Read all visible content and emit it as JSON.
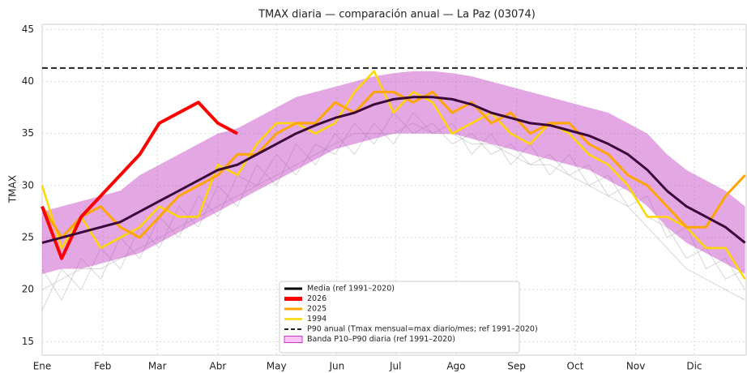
{
  "chart_data": {
    "type": "line",
    "title": "TMAX diaria — comparación anual — La Paz (03074)",
    "y_label": "TMAX",
    "x": [
      0,
      10,
      20,
      30,
      40,
      50,
      60,
      70,
      80,
      90,
      100,
      110,
      120,
      130,
      140,
      150,
      160,
      170,
      180,
      190,
      200,
      210,
      220,
      230,
      240,
      250,
      260,
      270,
      280,
      290,
      300,
      310,
      320,
      330,
      340,
      350,
      360
    ],
    "xlim": [
      0,
      361
    ],
    "ylim": [
      13.7,
      45.5
    ],
    "xticks": [
      {
        "value": 0,
        "label": "Ene"
      },
      {
        "value": 31,
        "label": "Feb"
      },
      {
        "value": 59,
        "label": "Mar"
      },
      {
        "value": 90,
        "label": "Abr"
      },
      {
        "value": 120,
        "label": "May"
      },
      {
        "value": 151,
        "label": "Jun"
      },
      {
        "value": 181,
        "label": "Jul"
      },
      {
        "value": 212,
        "label": "Ago"
      },
      {
        "value": 243,
        "label": "Sep"
      },
      {
        "value": 273,
        "label": "Oct"
      },
      {
        "value": 304,
        "label": "Nov"
      },
      {
        "value": 334,
        "label": "Dic"
      }
    ],
    "yticks": [
      15,
      20,
      25,
      30,
      35,
      40,
      45
    ],
    "grid": true,
    "legend": "lower center",
    "background_series": [
      {
        "color": "#bdbdbd",
        "values": [
          20,
          21,
          22,
          22,
          23,
          24,
          25,
          26,
          27,
          28,
          29,
          30,
          31,
          32,
          33,
          34,
          35,
          35,
          35,
          36,
          35,
          35,
          34,
          34,
          33,
          32,
          32,
          31,
          30,
          29,
          28,
          26,
          24,
          22,
          21,
          20,
          19
        ]
      },
      {
        "color": "#bdbdbd",
        "values": [
          22,
          19,
          23,
          21,
          25,
          23,
          27,
          25,
          29,
          27,
          31,
          30,
          33,
          31,
          34,
          33,
          36,
          34,
          37,
          35,
          36,
          34,
          35,
          33,
          34,
          32,
          33,
          31,
          32,
          29,
          30,
          27,
          26,
          23,
          24,
          21,
          22
        ]
      },
      {
        "color": "#bdbdbd",
        "values": [
          18,
          22,
          20,
          24,
          22,
          26,
          24,
          28,
          26,
          30,
          28,
          32,
          30,
          34,
          32,
          35,
          33,
          36,
          34,
          37,
          35,
          36,
          33,
          35,
          32,
          34,
          31,
          33,
          30,
          31,
          28,
          29,
          25,
          26,
          22,
          23,
          20
        ]
      }
    ],
    "band": {
      "name": "Banda P10–P90 diaria (ref 1991–2020)",
      "color": "#c03cc0",
      "lower": [
        21.5,
        22,
        22,
        22.5,
        23,
        23.5,
        24.5,
        25.5,
        26.5,
        27.5,
        28.5,
        29.5,
        30.5,
        31.5,
        32.5,
        33.5,
        34,
        34.5,
        35,
        35,
        35,
        35,
        34.5,
        34,
        33.5,
        33,
        32.5,
        32,
        31.5,
        30.5,
        29.5,
        28,
        26,
        24.5,
        23.5,
        22.5,
        21.5
      ],
      "upper": [
        27.5,
        28,
        28.5,
        29,
        29.5,
        31,
        32,
        33,
        34,
        35,
        35.5,
        36.5,
        37.5,
        38.5,
        39,
        39.5,
        40,
        40.5,
        40.8,
        41,
        41,
        40.8,
        40.5,
        40,
        39.5,
        39,
        38.5,
        38,
        37.5,
        37,
        36,
        35,
        33,
        31.5,
        30.5,
        29.5,
        28
      ]
    },
    "series": [
      {
        "name": "Media (ref 1991–2020)",
        "color": "#3a0838",
        "values": [
          24.5,
          25,
          25.5,
          26,
          26.5,
          27.5,
          28.5,
          29.5,
          30.5,
          31.5,
          32,
          33,
          34,
          35,
          35.8,
          36.5,
          37,
          37.8,
          38.3,
          38.5,
          38.5,
          38.3,
          37.8,
          37,
          36.5,
          36,
          35.8,
          35.3,
          34.8,
          34,
          33,
          31.5,
          29.5,
          28,
          27,
          26,
          24.5
        ]
      },
      {
        "name": "2026",
        "color": "#ff0000",
        "values": [
          28,
          23,
          27,
          29,
          31,
          33,
          36,
          37,
          38,
          36,
          35,
          null,
          null,
          null,
          null,
          null,
          null,
          null,
          null,
          null,
          null,
          null,
          null,
          null,
          null,
          null,
          null,
          null,
          null,
          null,
          null,
          null,
          null,
          null,
          null,
          null,
          null
        ]
      },
      {
        "name": "2025",
        "color": "#ffa500",
        "values": [
          28,
          25,
          27,
          28,
          26,
          25,
          27,
          29,
          30,
          31,
          33,
          33,
          35,
          36,
          36,
          38,
          37,
          39,
          39,
          38,
          39,
          37,
          38,
          36,
          37,
          35,
          36,
          36,
          34,
          33,
          31,
          30,
          28,
          26,
          26,
          29,
          31
        ]
      },
      {
        "name": "1994",
        "color": "#ffd700",
        "values": [
          30,
          24,
          27,
          24,
          25,
          26,
          28,
          27,
          27,
          32,
          31,
          34,
          36,
          36,
          35,
          36,
          39,
          41,
          37,
          39,
          38,
          35,
          36,
          37,
          35,
          34,
          36,
          35,
          33,
          32,
          30,
          27,
          27,
          26,
          24,
          24,
          21
        ]
      }
    ],
    "p90": {
      "name": "P90 anual (Tmax mensual=max diario/mes; ref 1991–2020)",
      "value": 41.3,
      "color": "#222222"
    }
  }
}
